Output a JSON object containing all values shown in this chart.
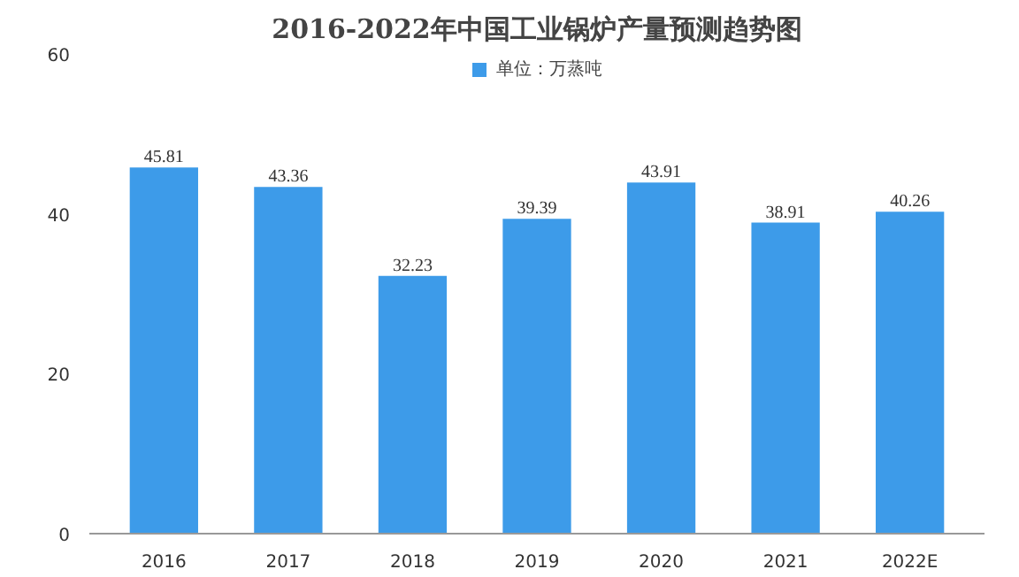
{
  "chart_data": {
    "type": "bar",
    "title": "2016-2022年中国工业锅炉产量预测趋势图",
    "categories": [
      "2016",
      "2017",
      "2018",
      "2019",
      "2020",
      "2021",
      "2022E"
    ],
    "series": [
      {
        "name": "单位：万蒸吨",
        "color": "#3d9be9",
        "values": [
          45.81,
          43.36,
          32.23,
          39.39,
          43.91,
          38.91,
          40.26
        ]
      }
    ],
    "ylim": [
      0,
      60
    ],
    "yticks": [
      0,
      20,
      40,
      60
    ],
    "grid": false,
    "legend": "top",
    "data_labels": true
  }
}
